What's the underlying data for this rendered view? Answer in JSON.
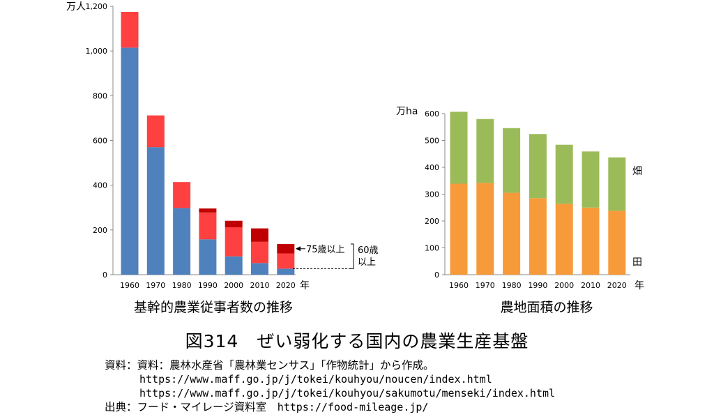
{
  "chart_data": [
    {
      "type": "bar",
      "title": "基幹的農業従事者数の推移",
      "unit": "万人",
      "xunit": "年",
      "categories": [
        "1960",
        "1970",
        "1980",
        "1990",
        "2000",
        "2010",
        "2020"
      ],
      "yticks": [
        "0",
        "200",
        "400",
        "600",
        "800",
        "1,000",
        "1,200"
      ],
      "ylim": [
        0,
        1200
      ],
      "stacked": true,
      "series": [
        {
          "name": "",
          "color": "#4f81bd",
          "values": [
            1015,
            570,
            298,
            158,
            82,
            52,
            27
          ]
        },
        {
          "name": "",
          "color": "#ff4040",
          "values": [
            160,
            142,
            116,
            120,
            130,
            95,
            68
          ]
        },
        {
          "name": "75歳以上",
          "color": "#c00000",
          "values": [
            0,
            0,
            0,
            18,
            29,
            60,
            42
          ]
        }
      ],
      "annotations": [
        "75歳以上",
        "60歳",
        "以上"
      ]
    },
    {
      "type": "bar",
      "title": "農地面積の推移",
      "unit": "万ha",
      "xunit": "年",
      "categories": [
        "1960",
        "1970",
        "1980",
        "1990",
        "2000",
        "2010",
        "2020"
      ],
      "yticks": [
        "0",
        "100",
        "200",
        "300",
        "400",
        "500",
        "600"
      ],
      "ylim": [
        0,
        600
      ],
      "stacked": true,
      "series": [
        {
          "name": "田",
          "color": "#f79a3a",
          "values": [
            339,
            342,
            305,
            285,
            264,
            250,
            238
          ]
        },
        {
          "name": "畑",
          "color": "#9bbb59",
          "values": [
            268,
            238,
            241,
            239,
            220,
            209,
            199
          ]
        }
      ]
    }
  ],
  "figure": {
    "title": "図314　ぜい弱化する国内の農業生産基盤"
  },
  "source": {
    "line1": "資料：資料：農林水産省「農林業センサス」「作物統計」から作成。",
    "url1": "https://www.maff.go.jp/j/tokei/kouhyou/noucen/index.html",
    "url2": "https://www.maff.go.jp/j/tokei/kouhyou/sakumotu/menseki/index.html",
    "credit_label": "出典：フード・マイレージ資料室　",
    "credit_url": "https://food-mileage.jp/"
  }
}
